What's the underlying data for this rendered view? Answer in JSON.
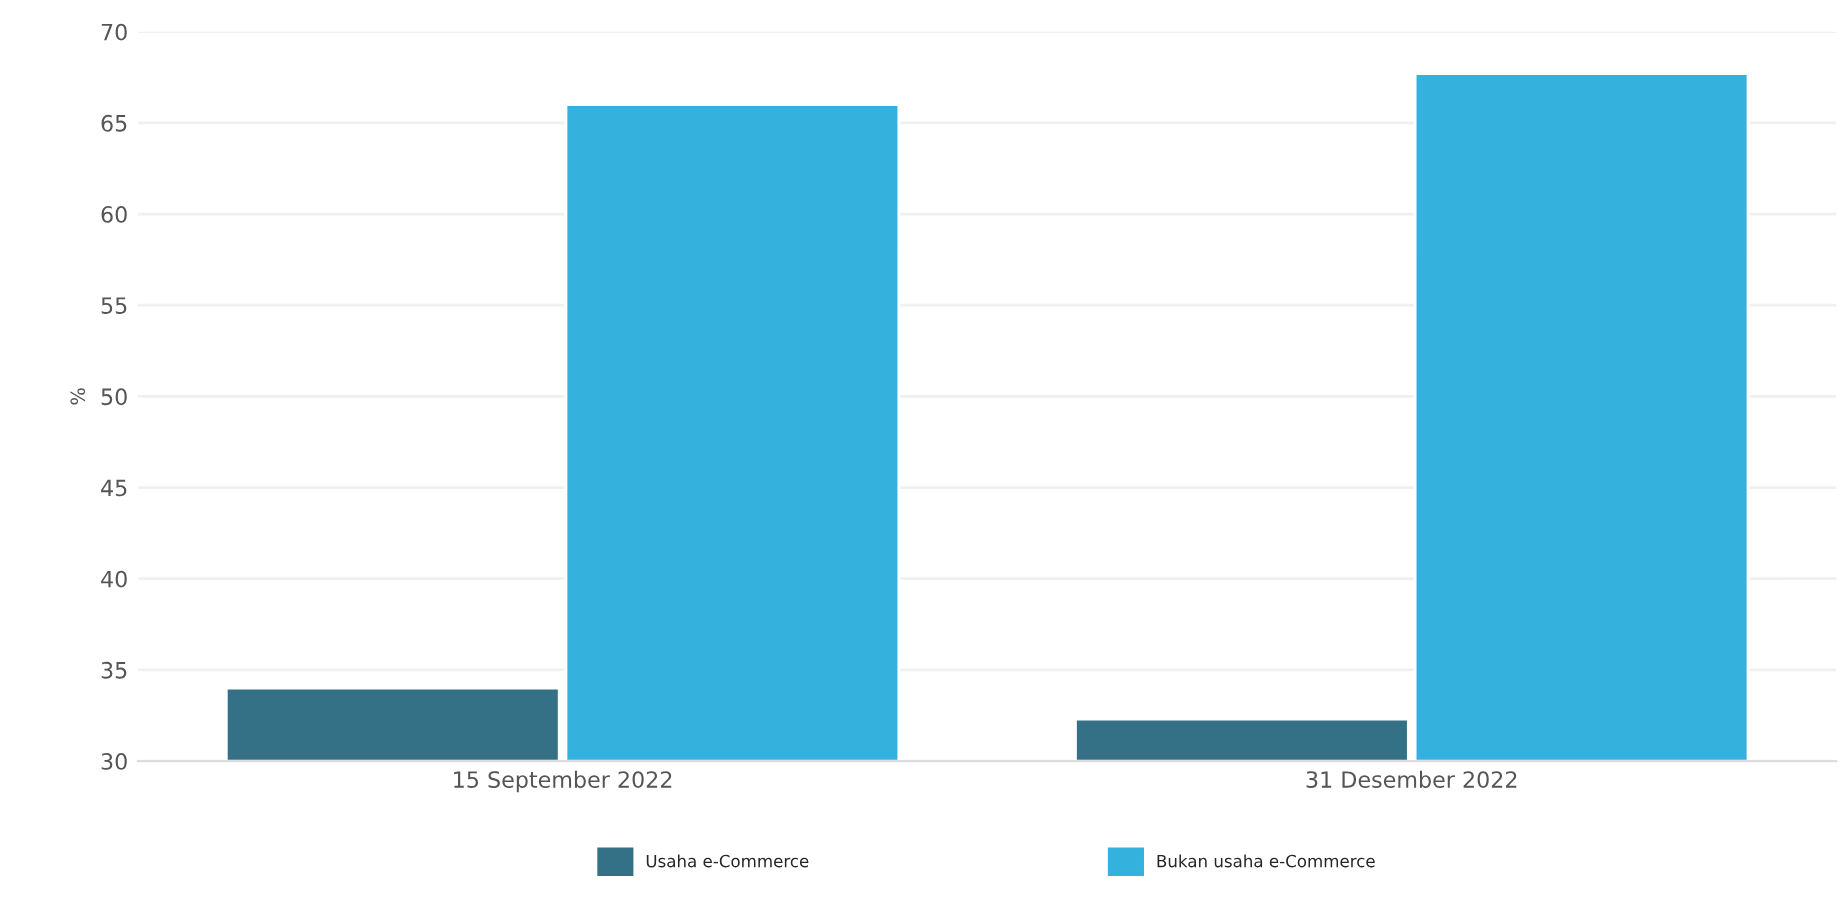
{
  "chart_data": {
    "type": "bar",
    "ylabel": "%",
    "categories": [
      "15 September 2022",
      "31 Desember 2022"
    ],
    "series": [
      {
        "name": "Usaha e-Commerce",
        "color": "#347186",
        "values": [
          34.0,
          32.3
        ]
      },
      {
        "name": "Bukan usaha e-Commerce",
        "color": "#35b1de",
        "values": [
          66.0,
          67.7
        ]
      }
    ],
    "ylim": [
      30,
      70
    ],
    "yticks": [
      30,
      35,
      40,
      45,
      50,
      55,
      60,
      65,
      70
    ],
    "grid": "y",
    "legend": "bottom"
  }
}
